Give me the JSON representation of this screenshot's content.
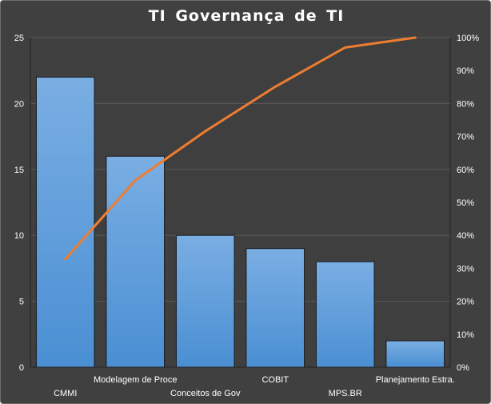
{
  "chart_data": {
    "type": "bar",
    "title": "TI Governança  de TI",
    "categories": [
      "CMMI",
      "Modelagem de Proce",
      "Conceitos de Gov",
      "COBIT",
      "MPS.BR",
      "Planejamento Estra."
    ],
    "series": [
      {
        "type": "bar",
        "values": [
          22,
          16,
          10,
          9,
          8,
          2
        ],
        "axis": "left"
      },
      {
        "type": "line",
        "values": [
          32.8,
          56.7,
          71.6,
          85.1,
          97.0,
          100
        ],
        "axis": "right",
        "unit": "%"
      }
    ],
    "left_axis": {
      "ticks": [
        "0",
        "5",
        "10",
        "15",
        "20",
        "25"
      ],
      "ylim": [
        0,
        25
      ]
    },
    "right_axis": {
      "ticks": [
        "0%",
        "10%",
        "20%",
        "30%",
        "40%",
        "50%",
        "60%",
        "70%",
        "80%",
        "90%",
        "100%"
      ],
      "ylim": [
        0,
        100
      ]
    },
    "grid": true,
    "legend": "none",
    "colors": {
      "background": "#404040",
      "plot_background": "#3f3f3f",
      "bar": "#4a8fd3",
      "bar_top": "#7aaee3",
      "line": "#ed7d31",
      "grid": "#5a5a5a",
      "axis": "#222222",
      "text": "#ffffff"
    }
  }
}
